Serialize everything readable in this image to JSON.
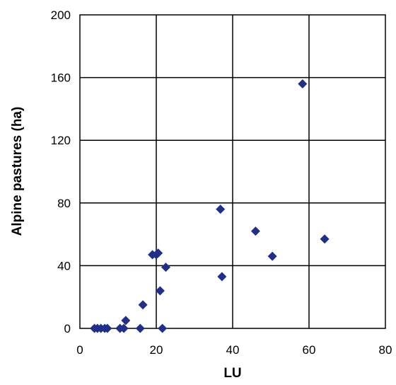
{
  "chart_data": {
    "type": "scatter",
    "title": "",
    "xlabel": "LU",
    "ylabel": "Alpine pastures (ha)",
    "xlim": [
      0,
      80
    ],
    "ylim": [
      0,
      200
    ],
    "xticks": [
      "0",
      "20",
      "40",
      "60",
      "80"
    ],
    "yticks": [
      "0",
      "40",
      "80",
      "120",
      "160",
      "200"
    ],
    "grid": true,
    "legend": "none",
    "marker": "diamond",
    "marker_color": "#1f2f8a",
    "series": [
      {
        "points": [
          {
            "x": 3.8,
            "y": 0
          },
          {
            "x": 4.6,
            "y": 0
          },
          {
            "x": 5.5,
            "y": 0
          },
          {
            "x": 6.5,
            "y": 0
          },
          {
            "x": 7.2,
            "y": 0
          },
          {
            "x": 10.5,
            "y": 0
          },
          {
            "x": 11.5,
            "y": 0
          },
          {
            "x": 12.0,
            "y": 5
          },
          {
            "x": 15.8,
            "y": 0
          },
          {
            "x": 16.5,
            "y": 15
          },
          {
            "x": 19.0,
            "y": 47
          },
          {
            "x": 20.0,
            "y": 47
          },
          {
            "x": 20.5,
            "y": 48
          },
          {
            "x": 21.0,
            "y": 24
          },
          {
            "x": 21.6,
            "y": 0
          },
          {
            "x": 22.5,
            "y": 39
          },
          {
            "x": 36.8,
            "y": 76
          },
          {
            "x": 37.2,
            "y": 33
          },
          {
            "x": 46.0,
            "y": 62
          },
          {
            "x": 50.4,
            "y": 46
          },
          {
            "x": 58.3,
            "y": 156
          },
          {
            "x": 64.1,
            "y": 57
          }
        ]
      }
    ]
  }
}
